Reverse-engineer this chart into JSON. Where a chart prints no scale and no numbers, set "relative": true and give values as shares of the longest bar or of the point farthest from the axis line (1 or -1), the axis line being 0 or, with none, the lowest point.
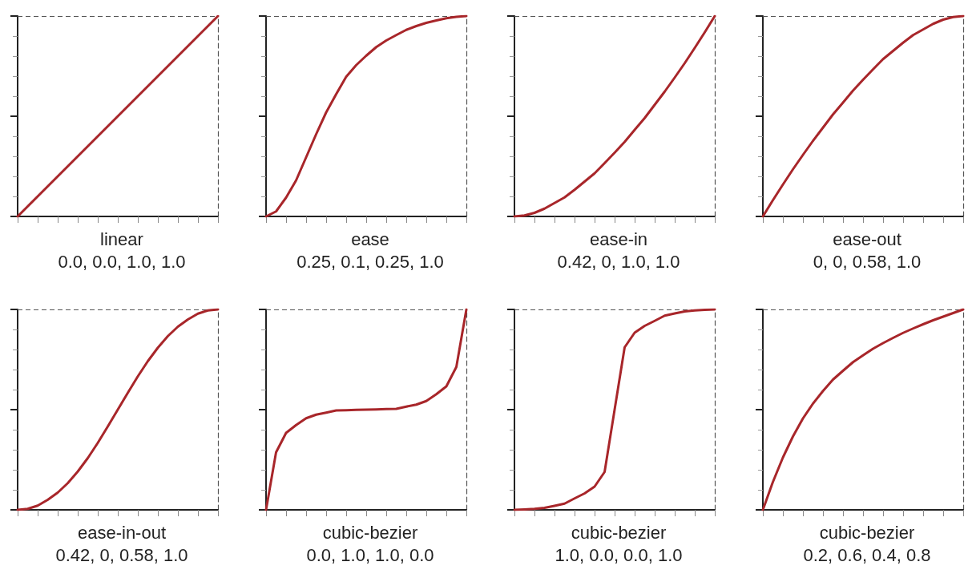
{
  "chart_data": [
    {
      "type": "line",
      "title": "linear",
      "subtitle": "0.0, 0.0, 1.0, 1.0",
      "relative": true,
      "marker": "none",
      "line_style": "solid",
      "grid": false,
      "categories": [
        null,
        null,
        null,
        null,
        null,
        null,
        null,
        null,
        null,
        null,
        null,
        null,
        null,
        null,
        null,
        null,
        null,
        null,
        null,
        null,
        null
      ],
      "series": [
        {
          "color": "#a8262a",
          "values": [
            0,
            0.05,
            0.1,
            0.15,
            0.2,
            0.25,
            0.3,
            0.35,
            0.4,
            0.45,
            0.5,
            0.55,
            0.6,
            0.65,
            0.7,
            0.75,
            0.8,
            0.85,
            0.9,
            0.95,
            1
          ]
        }
      ],
      "ref_lines": [
        {
          "axis": "y",
          "value": 1,
          "label": null,
          "color": "#555555",
          "line_style": "dashed"
        }
      ]
    },
    {
      "type": "line",
      "title": "ease",
      "subtitle": "0.25, 0.1, 0.25, 1.0",
      "relative": true,
      "marker": "none",
      "line_style": "solid",
      "grid": false,
      "categories": [
        null,
        null,
        null,
        null,
        null,
        null,
        null,
        null,
        null,
        null,
        null,
        null,
        null,
        null,
        null,
        null,
        null,
        null,
        null,
        null,
        null
      ],
      "series": [
        {
          "color": "#a8262a",
          "values": [
            0,
            0.025,
            0.094,
            0.18,
            0.295,
            0.41,
            0.519,
            0.61,
            0.697,
            0.755,
            0.802,
            0.845,
            0.878,
            0.905,
            0.931,
            0.95,
            0.966,
            0.978,
            0.989,
            0.996,
            1
          ]
        }
      ],
      "ref_lines": [
        {
          "axis": "y",
          "value": 1,
          "label": null,
          "color": "#555555",
          "line_style": "dashed"
        }
      ]
    },
    {
      "type": "line",
      "title": "ease-in",
      "subtitle": "0.42, 0, 1.0, 1.0",
      "relative": true,
      "marker": "none",
      "line_style": "solid",
      "grid": false,
      "categories": [
        null,
        null,
        null,
        null,
        null,
        null,
        null,
        null,
        null,
        null,
        null,
        null,
        null,
        null,
        null,
        null,
        null,
        null,
        null,
        null,
        null
      ],
      "series": [
        {
          "color": "#a8262a",
          "values": [
            0,
            0.005,
            0.018,
            0.039,
            0.067,
            0.095,
            0.133,
            0.174,
            0.215,
            0.266,
            0.318,
            0.372,
            0.432,
            0.491,
            0.557,
            0.623,
            0.693,
            0.765,
            0.841,
            0.919,
            1
          ]
        }
      ],
      "ref_lines": [
        {
          "axis": "y",
          "value": 1,
          "label": null,
          "color": "#555555",
          "line_style": "dashed"
        }
      ]
    },
    {
      "type": "line",
      "title": "ease-out",
      "subtitle": "0, 0, 0.58, 1.0",
      "relative": true,
      "marker": "none",
      "line_style": "solid",
      "grid": false,
      "categories": [
        null,
        null,
        null,
        null,
        null,
        null,
        null,
        null,
        null,
        null,
        null,
        null,
        null,
        null,
        null,
        null,
        null,
        null,
        null,
        null,
        null
      ],
      "series": [
        {
          "color": "#a8262a",
          "values": [
            0,
            0.081,
            0.159,
            0.235,
            0.307,
            0.377,
            0.443,
            0.509,
            0.568,
            0.628,
            0.682,
            0.734,
            0.785,
            0.826,
            0.867,
            0.905,
            0.933,
            0.961,
            0.982,
            0.995,
            1
          ]
        }
      ],
      "ref_lines": [
        {
          "axis": "y",
          "value": 1,
          "label": null,
          "color": "#555555",
          "line_style": "dashed"
        }
      ]
    },
    {
      "type": "line",
      "title": "ease-in-out",
      "subtitle": "0.42, 0, 0.58, 1.0",
      "relative": true,
      "marker": "none",
      "line_style": "solid",
      "grid": false,
      "categories": [
        null,
        null,
        null,
        null,
        null,
        null,
        null,
        null,
        null,
        null,
        null,
        null,
        null,
        null,
        null,
        null,
        null,
        null,
        null,
        null,
        null
      ],
      "series": [
        {
          "color": "#a8262a",
          "values": [
            0,
            0.005,
            0.021,
            0.05,
            0.086,
            0.133,
            0.191,
            0.258,
            0.334,
            0.416,
            0.5,
            0.584,
            0.666,
            0.742,
            0.809,
            0.867,
            0.914,
            0.95,
            0.979,
            0.995,
            1
          ]
        }
      ],
      "ref_lines": [
        {
          "axis": "y",
          "value": 1,
          "label": null,
          "color": "#555555",
          "line_style": "dashed"
        }
      ]
    },
    {
      "type": "line",
      "title": "cubic-bezier",
      "subtitle": "0.0, 1.0, 1.0, 0.0",
      "relative": true,
      "marker": "none",
      "line_style": "solid",
      "grid": false,
      "categories": [
        null,
        null,
        null,
        null,
        null,
        null,
        null,
        null,
        null,
        null,
        null,
        null,
        null,
        null,
        null,
        null,
        null,
        null,
        null,
        null,
        null
      ],
      "series": [
        {
          "color": "#a8262a",
          "values": [
            0,
            0.287,
            0.384,
            0.423,
            0.457,
            0.475,
            0.485,
            0.496,
            0.497,
            0.499,
            0.5,
            0.501,
            0.503,
            0.504,
            0.515,
            0.525,
            0.543,
            0.577,
            0.616,
            0.713,
            1
          ]
        }
      ],
      "ref_lines": [
        {
          "axis": "y",
          "value": 1,
          "label": null,
          "color": "#555555",
          "line_style": "dashed"
        }
      ]
    },
    {
      "type": "line",
      "title": "cubic-bezier",
      "subtitle": "1.0, 0.0, 0.0, 1.0",
      "relative": true,
      "marker": "none",
      "line_style": "solid",
      "grid": false,
      "categories": [
        null,
        null,
        null,
        null,
        null,
        null,
        null,
        null,
        null,
        null,
        null,
        null,
        null,
        null,
        null,
        null,
        null,
        null,
        null,
        null,
        null
      ],
      "series": [
        {
          "color": "#a8262a",
          "values": [
            0,
            0.002,
            0.005,
            0.01,
            0.02,
            0.031,
            0.057,
            0.082,
            0.116,
            0.189,
            0.5,
            0.811,
            0.884,
            0.918,
            0.943,
            0.969,
            0.98,
            0.99,
            0.995,
            0.998,
            1
          ]
        }
      ],
      "ref_lines": [
        {
          "axis": "y",
          "value": 1,
          "label": null,
          "color": "#555555",
          "line_style": "dashed"
        }
      ]
    },
    {
      "type": "line",
      "title": "cubic-bezier",
      "subtitle": "0.2, 0.6, 0.4, 0.8",
      "relative": true,
      "marker": "none",
      "line_style": "solid",
      "grid": false,
      "categories": [
        null,
        null,
        null,
        null,
        null,
        null,
        null,
        null,
        null,
        null,
        null,
        null,
        null,
        null,
        null,
        null,
        null,
        null,
        null,
        null,
        null
      ],
      "series": [
        {
          "color": "#a8262a",
          "values": [
            0,
            0.139,
            0.261,
            0.366,
            0.456,
            0.53,
            0.593,
            0.65,
            0.694,
            0.737,
            0.771,
            0.804,
            0.832,
            0.858,
            0.883,
            0.905,
            0.926,
            0.946,
            0.964,
            0.982,
            1
          ]
        }
      ],
      "ref_lines": [
        {
          "axis": "y",
          "value": 1,
          "label": null,
          "color": "#555555",
          "line_style": "dashed"
        }
      ]
    }
  ]
}
